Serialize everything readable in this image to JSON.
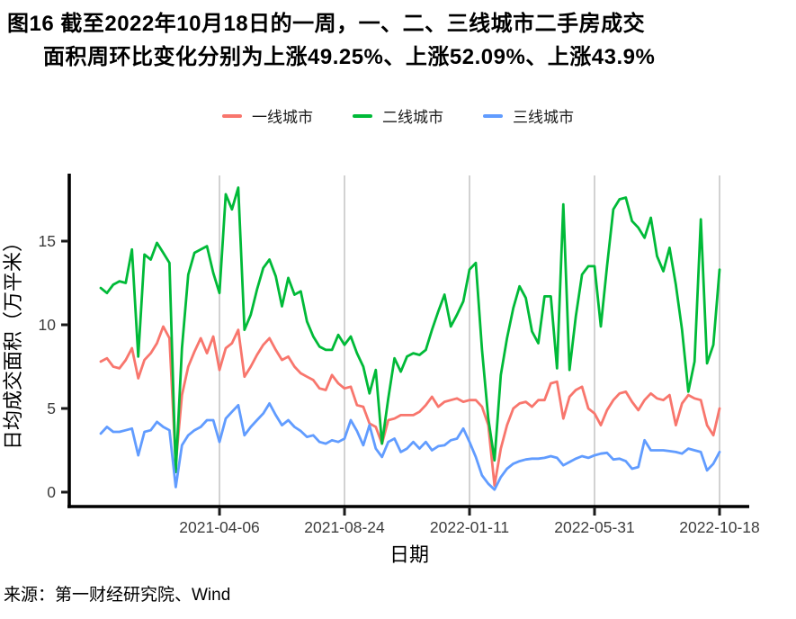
{
  "title": {
    "line1": "图16  截至2022年10月18日的一周，一、二、三线城市二手房成交",
    "line2": "面积周环比变化分别为上涨49.25%、上涨52.09%、上涨43.9%"
  },
  "legend": [
    {
      "label": "一线城市",
      "color": "#F8766D"
    },
    {
      "label": "二线城市",
      "color": "#00BA38"
    },
    {
      "label": "三线城市",
      "color": "#619CFF"
    }
  ],
  "source": "来源：第一财经研究院、Wind",
  "chart_data": {
    "type": "line",
    "title": "截至2022年10月18日的一周，一、二、三线城市二手房成交面积周环比变化分别为上涨49.25%、上涨52.09%、上涨43.9%",
    "xlabel": "日期",
    "ylabel": "日均成交面积（万平米）",
    "x_tick_labels": [
      "2021-04-06",
      "2021-08-24",
      "2022-01-11",
      "2022-05-31",
      "2022-10-18"
    ],
    "x_tick_indices": [
      19,
      39,
      59,
      79,
      99
    ],
    "y_ticks": [
      0,
      5,
      10,
      15
    ],
    "ylim": [
      0,
      18.5
    ],
    "n_points": 100,
    "frequency": "weekly",
    "grid": "vertical-only",
    "gridline_color": "#c3c3c3",
    "axis_color": "#000000",
    "tick_label_color": "#3c3c3c",
    "legend_position": "top-center",
    "series": [
      {
        "name": "一线城市",
        "key": "tier1",
        "color": "#F8766D",
        "values": [
          7.8,
          8.0,
          7.5,
          7.4,
          7.9,
          8.6,
          6.8,
          7.9,
          8.3,
          8.9,
          9.9,
          9.2,
          1.7,
          5.8,
          7.5,
          8.4,
          9.2,
          8.3,
          9.3,
          7.3,
          8.6,
          8.9,
          9.7,
          6.9,
          7.5,
          8.2,
          8.8,
          9.2,
          8.5,
          7.9,
          8.1,
          7.5,
          7.1,
          6.9,
          6.7,
          6.2,
          6.1,
          7.0,
          6.5,
          6.2,
          6.3,
          5.2,
          5.1,
          4.1,
          3.9,
          2.9,
          4.3,
          4.4,
          4.6,
          4.6,
          4.6,
          4.8,
          5.2,
          5.7,
          5.1,
          5.4,
          5.5,
          5.6,
          5.4,
          5.5,
          5.5,
          5.1,
          4.0,
          0.4,
          2.6,
          4.0,
          5.0,
          5.3,
          5.4,
          5.1,
          5.5,
          5.5,
          6.5,
          6.6,
          4.4,
          5.7,
          6.1,
          6.3,
          5.0,
          4.7,
          4.0,
          4.9,
          5.5,
          5.9,
          6.0,
          5.4,
          4.9,
          5.5,
          5.9,
          5.6,
          5.5,
          5.8,
          4.0,
          5.3,
          5.8,
          5.6,
          5.5,
          4.0,
          3.4,
          5.0
        ]
      },
      {
        "name": "二线城市",
        "key": "tier2",
        "color": "#00BA38",
        "values": [
          12.2,
          11.9,
          12.4,
          12.6,
          12.5,
          14.5,
          8.1,
          14.2,
          13.9,
          14.9,
          14.3,
          13.7,
          1.2,
          8.6,
          13.0,
          14.3,
          14.5,
          14.7,
          13.1,
          11.9,
          17.8,
          16.9,
          18.2,
          9.7,
          10.6,
          12.1,
          13.4,
          13.9,
          12.9,
          11.1,
          12.8,
          11.8,
          12.0,
          10.2,
          9.3,
          8.7,
          8.5,
          8.5,
          9.4,
          8.8,
          9.3,
          8.3,
          7.5,
          5.9,
          7.3,
          2.9,
          5.6,
          8.0,
          7.2,
          8.1,
          8.3,
          8.2,
          8.5,
          9.7,
          10.8,
          11.8,
          9.9,
          10.6,
          11.4,
          13.3,
          13.7,
          8.5,
          4.4,
          1.9,
          7.0,
          9.2,
          11.0,
          12.3,
          11.6,
          9.6,
          8.9,
          11.7,
          11.7,
          7.4,
          17.2,
          7.3,
          10.5,
          13.0,
          13.5,
          13.5,
          9.9,
          13.5,
          16.9,
          17.5,
          17.6,
          16.2,
          15.8,
          15.2,
          16.4,
          14.1,
          13.2,
          14.6,
          12.4,
          9.7,
          6.0,
          7.8,
          16.3,
          7.7,
          8.8,
          13.3
        ]
      },
      {
        "name": "三线城市",
        "key": "tier3",
        "color": "#619CFF",
        "values": [
          3.5,
          3.9,
          3.6,
          3.6,
          3.7,
          3.8,
          2.2,
          3.6,
          3.7,
          4.2,
          3.9,
          3.7,
          0.3,
          2.8,
          3.4,
          3.7,
          3.9,
          4.3,
          4.3,
          3.0,
          4.4,
          4.8,
          5.2,
          3.4,
          3.9,
          4.3,
          4.7,
          5.3,
          4.6,
          4.0,
          4.3,
          3.9,
          3.65,
          3.3,
          3.4,
          3.0,
          2.9,
          3.1,
          3.0,
          3.2,
          4.3,
          3.65,
          2.8,
          4.0,
          2.6,
          2.1,
          3.0,
          3.2,
          2.4,
          2.6,
          3.0,
          2.6,
          3.0,
          2.5,
          2.75,
          2.8,
          3.1,
          3.2,
          3.8,
          3.0,
          2.1,
          1.0,
          0.5,
          0.15,
          0.9,
          1.4,
          1.7,
          1.85,
          1.95,
          2.0,
          2.0,
          2.05,
          2.15,
          2.05,
          1.6,
          1.8,
          2.0,
          2.15,
          2.05,
          2.2,
          2.3,
          2.35,
          1.95,
          2.0,
          1.85,
          1.4,
          1.5,
          3.1,
          2.5,
          2.5,
          2.5,
          2.45,
          2.4,
          2.3,
          2.6,
          2.5,
          2.4,
          1.3,
          1.7,
          2.4
        ]
      }
    ]
  }
}
